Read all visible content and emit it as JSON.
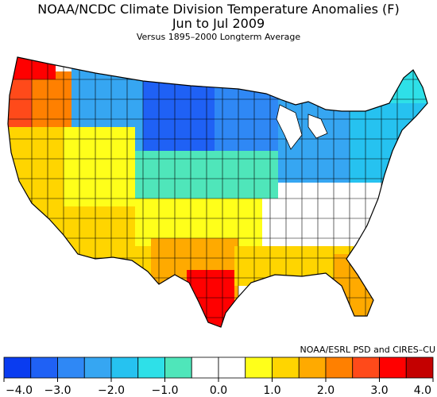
{
  "title": {
    "line1": "NOAA/NCDC Climate Division Temperature Anomalies (F)",
    "line2": "Jun to Jul 2009",
    "line3": "Versus 1895–2000 Longterm Average"
  },
  "credit": "NOAA/ESRL PSD and CIRES–CU",
  "legend": {
    "colors": [
      "#0a3cf0",
      "#1f61f5",
      "#2f88f5",
      "#36a6f2",
      "#26c2f0",
      "#2ee0e8",
      "#4fe6ba",
      "#ffffff",
      "#ffffff",
      "#ffff1a",
      "#ffd500",
      "#ffaa00",
      "#ff8000",
      "#ff4a1a",
      "#ff0000",
      "#c40000"
    ],
    "tick_labels": [
      {
        "label": "−4.0",
        "value": -4.0
      },
      {
        "label": "−3.0",
        "value": -3.0
      },
      {
        "label": "−2.0",
        "value": -2.0
      },
      {
        "label": "−1.0",
        "value": -1.0
      },
      {
        "label": "0.0",
        "value": 0.0
      },
      {
        "label": "1.0",
        "value": 1.0
      },
      {
        "label": "2.0",
        "value": 2.0
      },
      {
        "label": "3.0",
        "value": 3.0
      },
      {
        "label": "4.0",
        "value": 4.0
      }
    ]
  },
  "regions": [
    {
      "name": "pacific-northwest-coast",
      "color": "#ff4a1a"
    },
    {
      "name": "washington-puget",
      "color": "#ff0000"
    },
    {
      "name": "oregon-interior",
      "color": "#ff8000"
    },
    {
      "name": "northern-rockies",
      "color": "#36a6f2"
    },
    {
      "name": "northern-plains",
      "color": "#1f61f5"
    },
    {
      "name": "upper-midwest",
      "color": "#2f88f5"
    },
    {
      "name": "great-lakes",
      "color": "#36a6f2"
    },
    {
      "name": "northeast",
      "color": "#26c2f0"
    },
    {
      "name": "new-england",
      "color": "#2ee0e8"
    },
    {
      "name": "california",
      "color": "#ffd500"
    },
    {
      "name": "nevada-utah",
      "color": "#ffff1a"
    },
    {
      "name": "southwest",
      "color": "#ffd500"
    },
    {
      "name": "central-plains",
      "color": "#4fe6ba"
    },
    {
      "name": "ohio-valley",
      "color": "#ffffff"
    },
    {
      "name": "south-central",
      "color": "#ffff1a"
    },
    {
      "name": "texas-west",
      "color": "#ffaa00"
    },
    {
      "name": "south-texas",
      "color": "#ff0000"
    },
    {
      "name": "gulf-coast",
      "color": "#ffd500"
    },
    {
      "name": "florida",
      "color": "#ffaa00"
    },
    {
      "name": "southeast-interior",
      "color": "#ffffff"
    }
  ]
}
